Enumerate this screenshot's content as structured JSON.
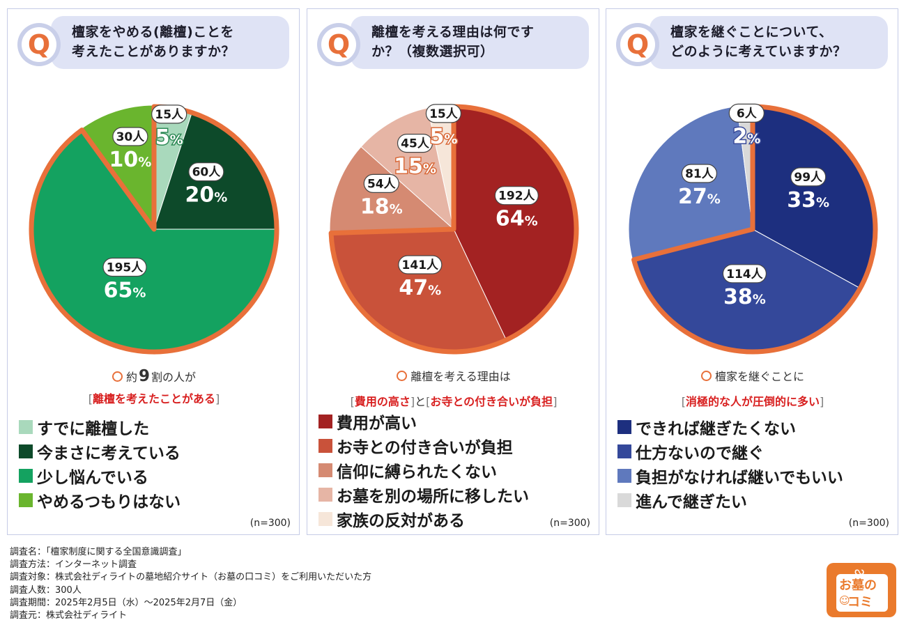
{
  "panels": [
    {
      "question": "檀家をやめる(離檀)ことを\n考えたことがありますか？",
      "summary": {
        "pre": "約",
        "big": "9",
        "post": "割の人が",
        "highlights": [
          "離檀を考えたことがある"
        ],
        "connector": ""
      },
      "n_label": "(n=300)"
    },
    {
      "question": "離檀を考える理由は何です\nか？（複数選択可）",
      "summary": {
        "pre": "離檀を考える理由は",
        "big": "",
        "post": "",
        "highlights": [
          "費用の高さ",
          "お寺との付き合いが負担"
        ],
        "connector": "と"
      },
      "n_label": "(n=300)"
    },
    {
      "question": "檀家を継ぐことについて、\nどのように考えていますか？",
      "summary": {
        "pre": "檀家を継ぐことに",
        "big": "",
        "post": "",
        "highlights": [
          "消極的な人が圧倒的に多い"
        ],
        "connector": ""
      },
      "n_label": "(n=300)"
    }
  ],
  "chart_data": [
    {
      "type": "pie",
      "title": "檀家をやめる(離檀)ことを考えたことがありますか？",
      "categories": [
        "すでに離檀した",
        "今まさに考えている",
        "少し悩んでいる",
        "やめるつもりはない"
      ],
      "counts": [
        15,
        60,
        195,
        30
      ],
      "count_labels": [
        "15人",
        "60人",
        "195人",
        "30人"
      ],
      "values": [
        5,
        20,
        65,
        10
      ],
      "value_labels": [
        "5",
        "20",
        "65",
        "10"
      ],
      "colors": [
        "#a9d9bc",
        "#0d4a2a",
        "#14a260",
        "#6ab52e"
      ],
      "highlight_group": [
        0,
        1,
        2
      ],
      "n": 300
    },
    {
      "type": "pie",
      "title": "離檀を考える理由は何ですか？（複数選択可）",
      "categories": [
        "費用が高い",
        "お寺との付き合いが負担",
        "信仰に縛られたくない",
        "お墓を別の場所に移したい",
        "家族の反対がある"
      ],
      "counts": [
        192,
        141,
        54,
        45,
        15
      ],
      "count_labels": [
        "192人",
        "141人",
        "54人",
        "45人",
        "15人"
      ],
      "values": [
        64,
        47,
        18,
        15,
        5
      ],
      "value_labels": [
        "64",
        "47",
        "18",
        "15",
        "5"
      ],
      "colors": [
        "#a32222",
        "#c9523a",
        "#d58a72",
        "#e6b5a5",
        "#f6e6d9"
      ],
      "highlight_group": [
        0,
        1
      ],
      "n": 300
    },
    {
      "type": "pie",
      "title": "檀家を継ぐことについて、どのように考えていますか？",
      "categories": [
        "できれば継ぎたくない",
        "仕方ないので継ぐ",
        "負担がなければ継いでもいい",
        "進んで継ぎたい"
      ],
      "counts": [
        99,
        114,
        81,
        6
      ],
      "count_labels": [
        "99人",
        "114人",
        "81人",
        "6人"
      ],
      "values": [
        33,
        38,
        27,
        2
      ],
      "value_labels": [
        "33",
        "38",
        "27",
        "2"
      ],
      "colors": [
        "#1d2f7f",
        "#34489a",
        "#5f79bd",
        "#d9d9d9"
      ],
      "highlight_group": [
        0,
        1
      ],
      "n": 300
    }
  ],
  "percent_sign": "%",
  "footer": [
    "調査名：「檀家制度に関する全国意識調査」",
    "調査方法：インターネット調査",
    "調査対象：株式会社ディライトの墓地紹介サイト（お墓の口コミ）をご利用いただいた方",
    "調査人数：300人",
    "調査期間：2025年2月5日（水）～2025年2月7日（金）",
    "調査元：株式会社ディライト"
  ],
  "logo": {
    "line1": "お墓の",
    "line2": "コミ"
  },
  "accent_color": "#e8703a"
}
